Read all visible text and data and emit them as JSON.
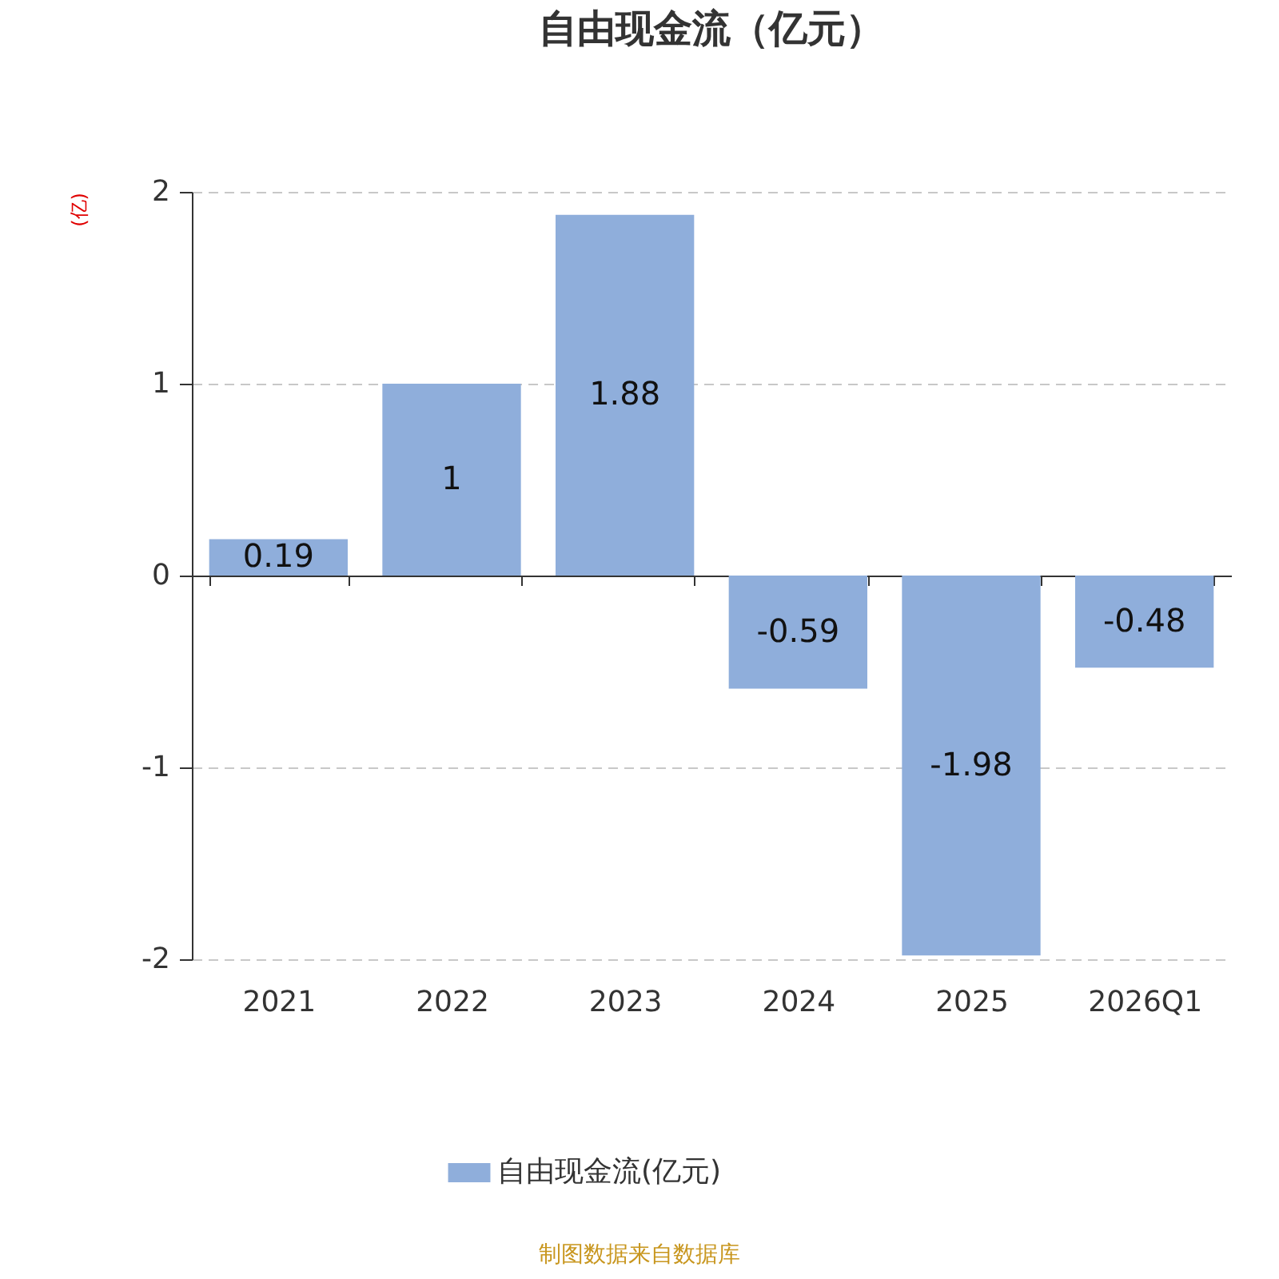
{
  "chart_data": {
    "type": "bar",
    "title": "自由现金流（亿元）",
    "ylabel": "(亿)",
    "categories": [
      "2021",
      "2022",
      "2023",
      "2024",
      "2025",
      "2026Q1"
    ],
    "series": [
      {
        "name": "自由现金流(亿元)",
        "color": "#8faedb",
        "values": [
          0.19,
          1,
          1.88,
          -0.59,
          -1.98,
          -0.48
        ]
      }
    ],
    "ylim": [
      -2,
      2
    ],
    "yticks": [
      -2,
      -1,
      0,
      1,
      2
    ],
    "grid": "y",
    "legend": "bottom",
    "data_labels": true,
    "annotations": [
      "制图数据来自数据库"
    ]
  }
}
